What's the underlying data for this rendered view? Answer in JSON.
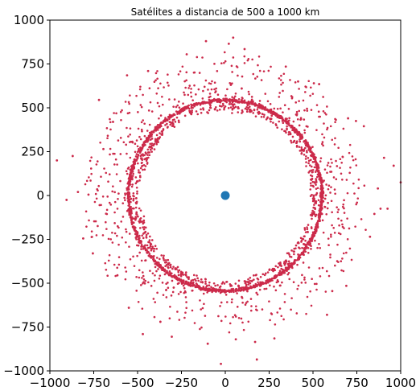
{
  "chart_data": {
    "type": "scatter",
    "title": "Satélites a distancia de 500 a 1000 km",
    "xlabel": "",
    "ylabel": "",
    "xlim": [
      -1000,
      1000
    ],
    "ylim": [
      -1000,
      1000
    ],
    "xticks": [
      -1000,
      -750,
      -500,
      -250,
      0,
      250,
      500,
      750,
      1000
    ],
    "yticks": [
      -1000,
      -750,
      -500,
      -250,
      0,
      250,
      500,
      750,
      1000
    ],
    "xtick_labels": [
      "−1000",
      "−750",
      "−500",
      "−250",
      "0",
      "250",
      "500",
      "750",
      "1000"
    ],
    "ytick_labels": [
      "−1000",
      "−750",
      "−500",
      "−250",
      "0",
      "250",
      "500",
      "750",
      "1000"
    ],
    "grid": false,
    "aspect": "equal",
    "center": {
      "x": 0,
      "y": 0,
      "color": "#1f77b4"
    },
    "satellites": {
      "color": "#cc2a4a",
      "ring_radius_x": 560,
      "ring_radius_y": 550,
      "ring_center": [
        0,
        0
      ],
      "ring_points": 1400,
      "scatter_points": 1400,
      "radius_range": [
        500,
        1000
      ],
      "outliers": [
        [
          -960,
          200
        ],
        [
          -905,
          -25
        ],
        [
          -870,
          225
        ],
        [
          -840,
          20
        ],
        [
          -810,
          -245
        ],
        [
          -780,
          5
        ],
        [
          -755,
          -330
        ],
        [
          -720,
          545
        ],
        [
          -695,
          265
        ],
        [
          -640,
          420
        ],
        [
          -615,
          -455
        ],
        [
          -560,
          685
        ],
        [
          -550,
          -640
        ],
        [
          -470,
          -790
        ],
        [
          -440,
          710
        ],
        [
          -370,
          -720
        ],
        [
          -305,
          -805
        ],
        [
          -220,
          805
        ],
        [
          -110,
          880
        ],
        [
          -100,
          -845
        ],
        [
          -25,
          -960
        ],
        [
          20,
          865
        ],
        [
          45,
          900
        ],
        [
          60,
          -820
        ],
        [
          110,
          835
        ],
        [
          170,
          -835
        ],
        [
          180,
          -935
        ],
        [
          280,
          -815
        ],
        [
          345,
          735
        ],
        [
          415,
          650
        ],
        [
          505,
          640
        ],
        [
          535,
          635
        ],
        [
          580,
          -680
        ],
        [
          610,
          -545
        ],
        [
          690,
          -515
        ],
        [
          700,
          440
        ],
        [
          745,
          425
        ],
        [
          790,
          395
        ],
        [
          825,
          -235
        ],
        [
          850,
          -105
        ],
        [
          870,
          40
        ],
        [
          885,
          -75
        ],
        [
          905,
          215
        ],
        [
          925,
          -75
        ],
        [
          960,
          170
        ],
        [
          1000,
          75
        ]
      ]
    }
  }
}
